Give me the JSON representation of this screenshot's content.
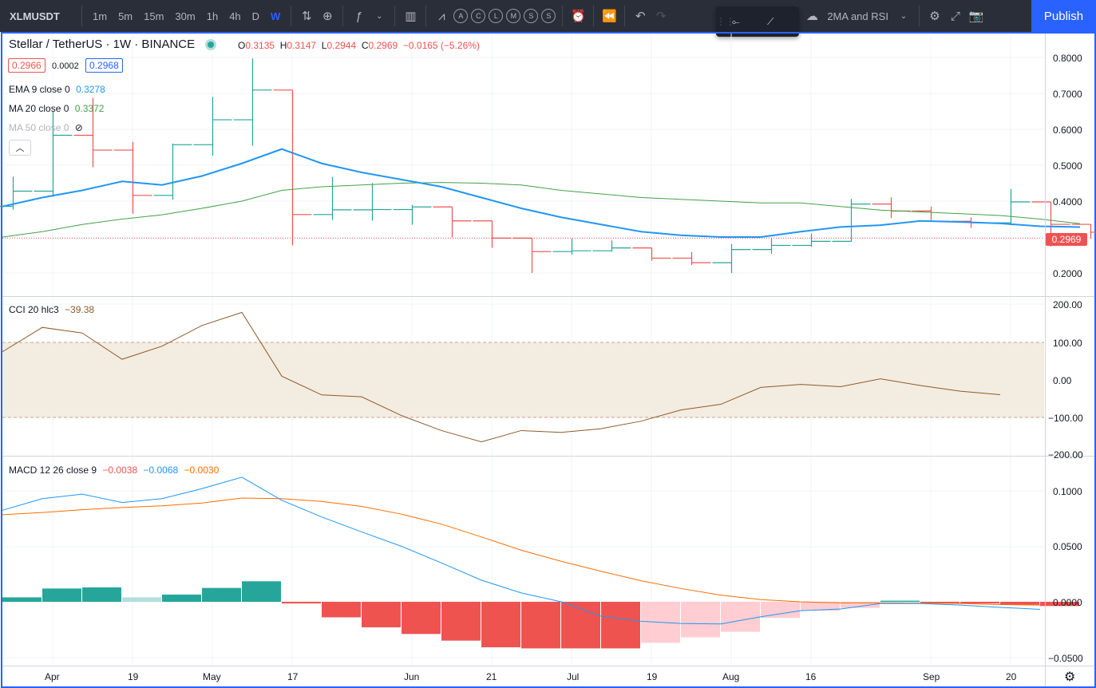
{
  "toolbar": {
    "symbol": "XLMUSDT",
    "intervals": [
      "1m",
      "5m",
      "15m",
      "30m",
      "1h",
      "4h",
      "D",
      "W"
    ],
    "active_interval": "W",
    "chart_styles": [
      "A",
      "C",
      "L",
      "M",
      "S",
      "S"
    ],
    "template_label": "2MA and RSI",
    "publish_label": "Publish",
    "accent_color": "#2962ff"
  },
  "legend": {
    "title": "Stellar / TetherUS · 1W · BINANCE",
    "o_label": "O",
    "o_value": "0.3135",
    "h_label": "H",
    "h_value": "0.3147",
    "l_label": "L",
    "l_value": "0.2944",
    "c_label": "C",
    "c_value": "0.2969",
    "change": "−0.0165 (−5.26%)",
    "bid": "0.2966",
    "spread": "0.0002",
    "ask": "0.2968",
    "ema_label": "EMA 9 close 0",
    "ema_value": "0.3278",
    "ma20_label": "MA 20 close 0",
    "ma20_value": "0.3372",
    "ma50_label": "MA 50 close 0",
    "cci_label": "CCI 20 hlc3",
    "cci_value": "−39.38",
    "macd_label": "MACD 12 26 close 9",
    "macd_v1": "−0.0038",
    "macd_v2": "−0.0068",
    "macd_v3": "−0.0030"
  },
  "price_axis": {
    "labels": [
      "0.8000",
      "0.7000",
      "0.6000",
      "0.5000",
      "0.4000",
      "0.2000"
    ],
    "last_price": "0.2969",
    "last_price_color": "#ef5350"
  },
  "cci_axis": {
    "labels": [
      "200.00",
      "100.00",
      "0.00",
      "−100.00",
      "−200.00"
    ]
  },
  "macd_axis": {
    "labels": [
      "0.1000",
      "0.0500",
      "0.0000",
      "−0.0500"
    ]
  },
  "time_axis": {
    "labels": [
      "Apr",
      "19",
      "May",
      "17",
      "Jun",
      "21",
      "Jul",
      "19",
      "Aug",
      "16",
      "Sep",
      "20"
    ]
  },
  "chart_data": [
    {
      "type": "ohlc",
      "series": [
        {
          "name": "price",
          "ohlc": [
            [
              0.3857,
              0.4681,
              0.3765,
              0.4278
            ],
            [
              0.4278,
              0.6506,
              0.4124,
              0.5833
            ],
            [
              0.5833,
              0.6877,
              0.4944,
              0.5421
            ],
            [
              0.5421,
              0.565,
              0.3651,
              0.416
            ],
            [
              0.416,
              0.5605,
              0.4041,
              0.5571
            ],
            [
              0.5571,
              0.6898,
              0.5265,
              0.6265
            ],
            [
              0.6265,
              0.7973,
              0.5541,
              0.7093
            ],
            [
              0.7093,
              0.7093,
              0.2771,
              0.3626
            ],
            [
              0.3626,
              0.4673,
              0.3475,
              0.3759
            ],
            [
              0.3759,
              0.4504,
              0.3459,
              0.3765
            ],
            [
              0.3765,
              0.3895,
              0.3344,
              0.3839
            ],
            [
              0.3839,
              0.3839,
              0.299,
              0.345
            ],
            [
              0.345,
              0.345,
              0.27,
              0.2969
            ],
            [
              0.2969,
              0.2969,
              0.2,
              0.2596
            ],
            [
              0.2596,
              0.2961,
              0.251,
              0.2618
            ],
            [
              0.2618,
              0.2904,
              0.259,
              0.2698
            ],
            [
              0.2698,
              0.2698,
              0.234,
              0.2412
            ],
            [
              0.2412,
              0.2582,
              0.2222,
              0.2286
            ],
            [
              0.2286,
              0.2805,
              0.2,
              0.2652
            ],
            [
              0.2652,
              0.2975,
              0.2531,
              0.2768
            ],
            [
              0.2768,
              0.3099,
              0.2726,
              0.288
            ],
            [
              0.288,
              0.4063,
              0.287,
              0.392
            ],
            [
              0.392,
              0.4104,
              0.3529,
              0.3725
            ],
            [
              0.3725,
              0.3851,
              0.3423,
              0.344
            ],
            [
              0.344,
              0.3545,
              0.3256,
              0.3396
            ],
            [
              0.3396,
              0.4338,
              0.333,
              0.3977
            ],
            [
              0.3977,
              0.3977,
              0.2735,
              0.3354
            ],
            [
              0.3354,
              0.3354,
              0.295,
              0.3135
            ],
            [
              0.3135,
              0.3147,
              0.2944,
              0.2969
            ]
          ]
        },
        {
          "name": "EMA 9 close 0",
          "color": "#2196f3",
          "values": [
            0.385,
            0.41,
            0.43,
            0.455,
            0.445,
            0.47,
            0.505,
            0.545,
            0.505,
            0.48,
            0.46,
            0.44,
            0.41,
            0.38,
            0.355,
            0.335,
            0.315,
            0.305,
            0.3,
            0.3,
            0.315,
            0.328,
            0.333,
            0.345,
            0.342,
            0.338,
            0.33,
            0.3278
          ]
        },
        {
          "name": "MA 20 close 0",
          "color": "#43a047",
          "values": [
            0.3,
            0.315,
            0.335,
            0.35,
            0.362,
            0.38,
            0.4,
            0.43,
            0.44,
            0.445,
            0.45,
            0.452,
            0.45,
            0.445,
            0.43,
            0.42,
            0.41,
            0.405,
            0.4,
            0.395,
            0.395,
            0.385,
            0.375,
            0.37,
            0.365,
            0.36,
            0.35,
            0.3372
          ]
        }
      ],
      "ylim": [
        0.15,
        0.8
      ],
      "last_price": 0.2969
    },
    {
      "type": "line",
      "series": [
        {
          "name": "CCI 20 hlc3",
          "color": "#8d5b2a",
          "values": [
            75,
            140,
            125,
            55,
            90,
            145,
            180,
            10,
            -40,
            -45,
            -95,
            -135,
            -165,
            -135,
            -140,
            -130,
            -110,
            -80,
            -65,
            -20,
            -12,
            -18,
            3,
            -15,
            -30,
            -39.38
          ]
        }
      ],
      "ylim": [
        -200,
        200
      ],
      "band": [
        -100,
        100
      ]
    },
    {
      "type": "bar",
      "series": [
        {
          "name": "MACD",
          "color": "#2196f3",
          "values": [
            0.0825,
            0.093,
            0.097,
            0.0895,
            0.093,
            0.102,
            0.1123,
            0.0915,
            0.0765,
            0.063,
            0.05,
            0.035,
            0.0195,
            0.008,
            0.0,
            -0.013,
            -0.0175,
            -0.0195,
            -0.02,
            -0.0135,
            -0.008,
            -0.0065,
            -0.0015,
            -0.0015,
            -0.003,
            -0.005,
            -0.0068
          ]
        },
        {
          "name": "Signal",
          "color": "#ff6d00",
          "values": [
            0.0785,
            0.0805,
            0.083,
            0.085,
            0.0865,
            0.089,
            0.0935,
            0.093,
            0.0905,
            0.086,
            0.079,
            0.07,
            0.0585,
            0.0465,
            0.0365,
            0.0275,
            0.019,
            0.012,
            0.006,
            0.002,
            0.0,
            -0.001,
            -0.001,
            -0.0012,
            -0.0015,
            -0.0025,
            -0.003
          ]
        },
        {
          "name": "Histogram",
          "values": [
            0.004,
            0.012,
            0.013,
            0.004,
            0.0065,
            0.0125,
            0.0185,
            -0.0015,
            -0.014,
            -0.023,
            -0.029,
            -0.035,
            -0.041,
            -0.042,
            -0.042,
            -0.042,
            -0.037,
            -0.032,
            -0.027,
            -0.0145,
            -0.008,
            -0.0055,
            0.001,
            -0.001,
            -0.0015,
            -0.0025,
            -0.0038
          ]
        }
      ],
      "ylim": [
        -0.055,
        0.115
      ]
    }
  ]
}
